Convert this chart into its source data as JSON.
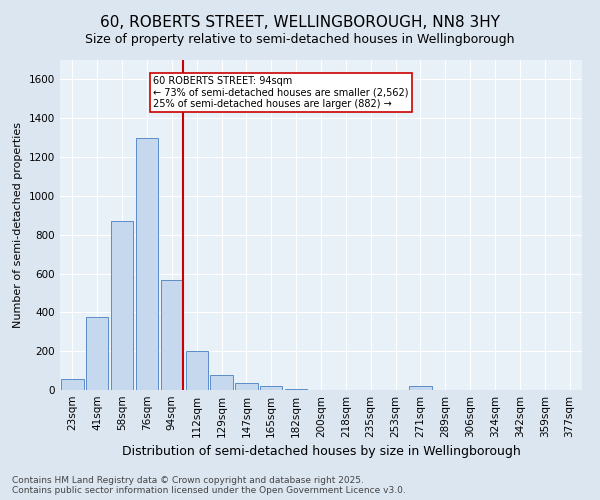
{
  "title": "60, ROBERTS STREET, WELLINGBOROUGH, NN8 3HY",
  "subtitle": "Size of property relative to semi-detached houses in Wellingborough",
  "xlabel": "Distribution of semi-detached houses by size in Wellingborough",
  "ylabel": "Number of semi-detached properties",
  "categories": [
    "23sqm",
    "41sqm",
    "58sqm",
    "76sqm",
    "94sqm",
    "112sqm",
    "129sqm",
    "147sqm",
    "165sqm",
    "182sqm",
    "200sqm",
    "218sqm",
    "235sqm",
    "253sqm",
    "271sqm",
    "289sqm",
    "306sqm",
    "324sqm",
    "342sqm",
    "359sqm",
    "377sqm"
  ],
  "values": [
    55,
    375,
    870,
    1300,
    565,
    200,
    75,
    35,
    20,
    5,
    0,
    0,
    0,
    0,
    20,
    0,
    0,
    0,
    0,
    0,
    0
  ],
  "bar_color": "#c5d8ed",
  "bar_edge_color": "#5b8dc8",
  "marker_index": 4,
  "marker_color": "#cc0000",
  "marker_label": "60 ROBERTS STREET: 94sqm",
  "annotation_line1": "← 73% of semi-detached houses are smaller (2,562)",
  "annotation_line2": "25% of semi-detached houses are larger (882) →",
  "annotation_box_color": "#cc0000",
  "ylim": [
    0,
    1700
  ],
  "yticks": [
    0,
    200,
    400,
    600,
    800,
    1000,
    1200,
    1400,
    1600
  ],
  "background_color": "#dce6f1",
  "plot_bg_color": "#e8f0f8",
  "footer": "Contains HM Land Registry data © Crown copyright and database right 2025.\nContains public sector information licensed under the Open Government Licence v3.0.",
  "title_fontsize": 11,
  "subtitle_fontsize": 9,
  "xlabel_fontsize": 9,
  "ylabel_fontsize": 8,
  "footer_fontsize": 6.5,
  "grid_color": "#ffffff",
  "tick_fontsize": 7.5
}
